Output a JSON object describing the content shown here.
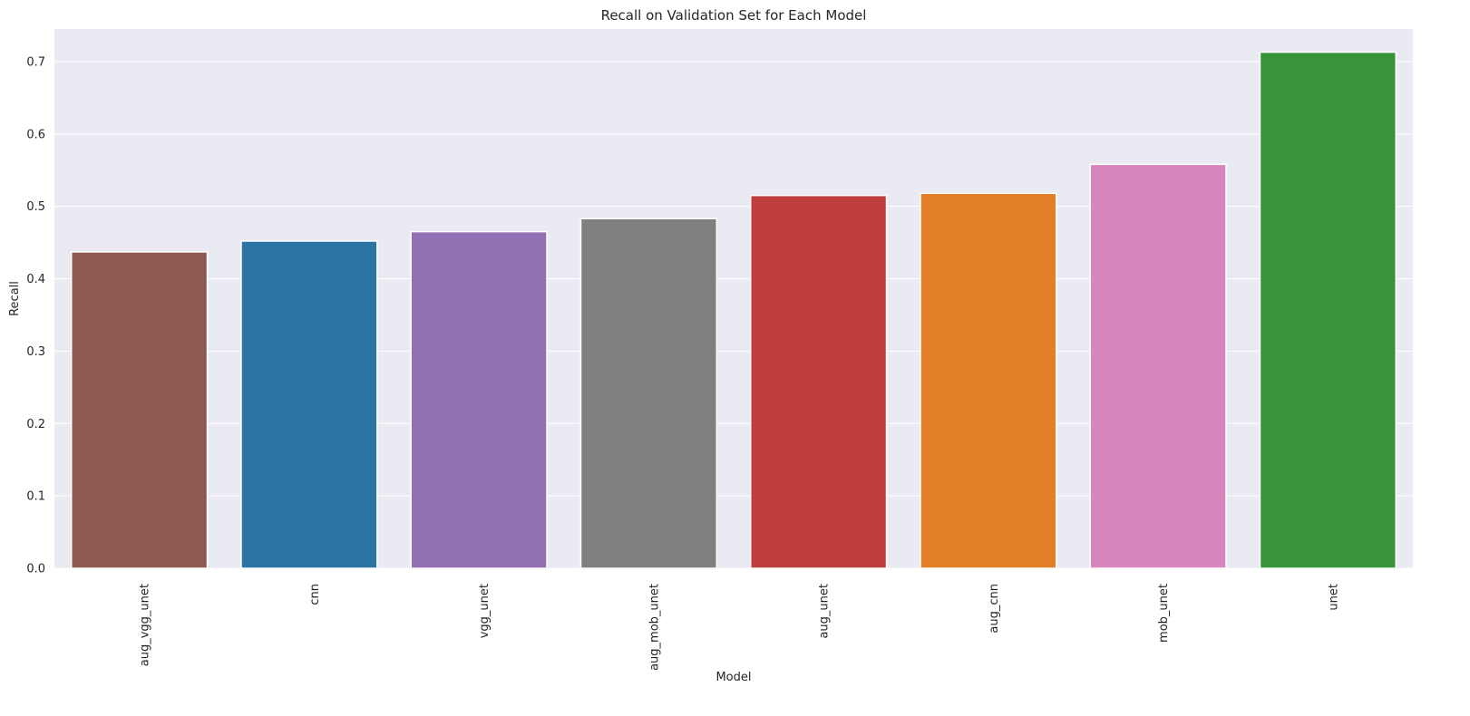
{
  "chart_data": {
    "type": "bar",
    "title": "Recall on Validation Set for Each Model",
    "xlabel": "Model",
    "ylabel": "Recall",
    "categories": [
      "aug_vgg_unet",
      "cnn",
      "vgg_unet",
      "aug_mob_unet",
      "aug_unet",
      "aug_cnn",
      "mob_unet",
      "unet"
    ],
    "values": [
      0.437,
      0.452,
      0.465,
      0.483,
      0.515,
      0.518,
      0.558,
      0.713
    ],
    "colors": [
      "#8c5a51",
      "#2c73a6",
      "#9270b3",
      "#7f7f7f",
      "#c13e3e",
      "#e28029",
      "#d886bd",
      "#389438"
    ],
    "ylim": [
      0,
      0.745
    ],
    "yticks": [
      0.0,
      0.1,
      0.2,
      0.3,
      0.4,
      0.5,
      0.6,
      0.7
    ],
    "ytick_labels": [
      "0.0",
      "0.1",
      "0.2",
      "0.3",
      "0.4",
      "0.5",
      "0.6",
      "0.7"
    ],
    "grid": true,
    "background_color": "#eaeaf2",
    "grid_color": "#ffffff"
  }
}
